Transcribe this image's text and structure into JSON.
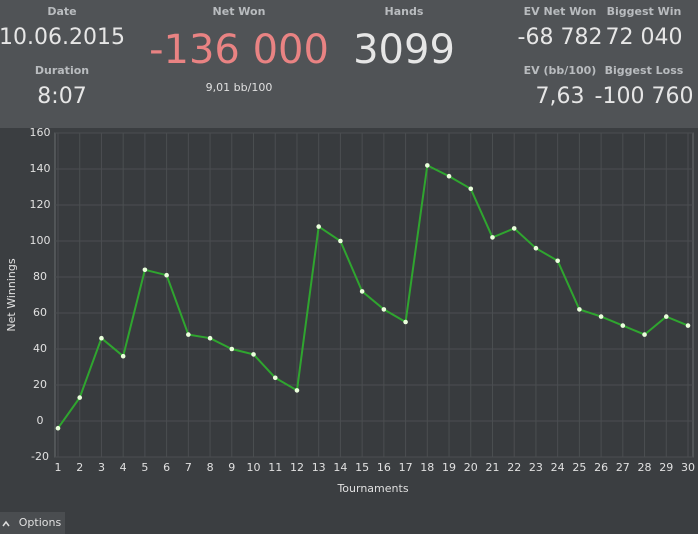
{
  "header": {
    "date_label": "Date",
    "date": "10.06.2015",
    "duration_label": "Duration",
    "duration": "8:07",
    "net_won_label": "Net Won",
    "net_won": "-136 000",
    "net_won_rate": "9,01 bb/100",
    "hands_label": "Hands",
    "hands": "3099",
    "ev_net_won_label": "EV Net Won",
    "ev_net_won": "-68 782",
    "biggest_win_label": "Biggest Win",
    "biggest_win": "72 040",
    "ev_rate_label": "EV (bb/100)",
    "ev_rate": "7,63",
    "biggest_loss_label": "Biggest Loss",
    "biggest_loss": "-100 760"
  },
  "footer": {
    "options": "Options"
  },
  "chart_data": {
    "type": "line",
    "x_label": "Tournaments",
    "y_label": "Net Winnings",
    "x": [
      1,
      2,
      3,
      4,
      5,
      6,
      7,
      8,
      9,
      10,
      11,
      12,
      13,
      14,
      15,
      16,
      17,
      18,
      19,
      20,
      21,
      22,
      23,
      24,
      25,
      26,
      27,
      28,
      29,
      30
    ],
    "series": [
      {
        "name": "Net Winnings",
        "color": "#2fa52f",
        "values": [
          -4,
          13,
          46,
          36,
          84,
          81,
          48,
          46,
          40,
          37,
          24,
          17,
          108,
          100,
          72,
          62,
          55,
          142,
          136,
          129,
          102,
          107,
          96,
          89,
          62,
          58,
          53,
          48,
          58,
          53
        ]
      }
    ],
    "xlim": [
      1,
      30
    ],
    "xticks": [
      1,
      2,
      3,
      4,
      5,
      6,
      7,
      8,
      9,
      10,
      11,
      12,
      13,
      14,
      15,
      16,
      17,
      18,
      19,
      20,
      21,
      22,
      23,
      24,
      25,
      26,
      27,
      28,
      29,
      30
    ],
    "ylim": [
      -20,
      160
    ],
    "yticks": [
      -20,
      0,
      20,
      40,
      60,
      80,
      100,
      120,
      140,
      160
    ],
    "grid": true
  }
}
